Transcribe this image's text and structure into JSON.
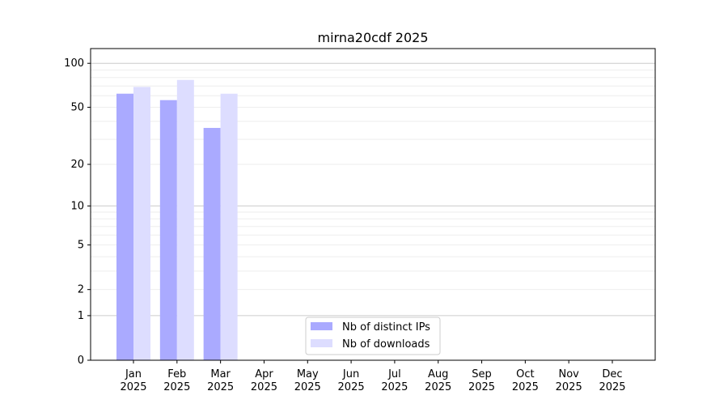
{
  "chart_data": {
    "type": "bar",
    "title": "mirna20cdf 2025",
    "xlabel": "",
    "ylabel": "",
    "yscale": "log(1+y)",
    "ylim": [
      0,
      130
    ],
    "yticks": [
      0,
      1,
      2,
      5,
      10,
      20,
      50,
      100
    ],
    "grid": true,
    "legend_position": "bottom-center",
    "categories": [
      "Jan\n2025",
      "Feb\n2025",
      "Mar\n2025",
      "Apr\n2025",
      "May\n2025",
      "Jun\n2025",
      "Jul\n2025",
      "Aug\n2025",
      "Sep\n2025",
      "Oct\n2025",
      "Nov\n2025",
      "Dec\n2025"
    ],
    "series": [
      {
        "name": "Nb of distinct IPs",
        "color": "#aaaaff",
        "values": [
          62,
          56,
          36,
          0,
          0,
          0,
          0,
          0,
          0,
          0,
          0,
          0
        ]
      },
      {
        "name": "Nb of downloads",
        "color": "#ddddff",
        "values": [
          69,
          77,
          62,
          0,
          0,
          0,
          0,
          0,
          0,
          0,
          0,
          0
        ]
      }
    ]
  }
}
